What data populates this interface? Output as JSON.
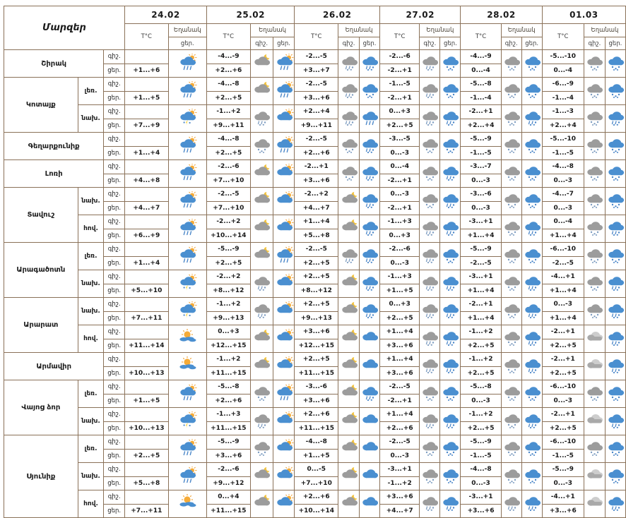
{
  "table": {
    "region_header": "Մարզեր",
    "temp_header": "T°C",
    "weather_header": "Եղանակ",
    "night_label": "գիշ.",
    "day_label": "ցեր.",
    "dates": [
      "24.02",
      "25.02",
      "26.02",
      "27.02",
      "28.02",
      "01.03"
    ],
    "colors": {
      "border": "#8a7158",
      "day_cloud": "#4a8fd0",
      "night_cloud": "#9c9c9c",
      "light_cloud": "#c6c6c6",
      "sun": "#f6ab37",
      "moon": "#f1c23f",
      "day_precip": "#4a86c8",
      "night_precip": "#7d9cc0",
      "bolt": "#f6cf2f"
    },
    "icon_legend": {
      "scr": "sun-cloud-rain",
      "scb": "sun-cloud-thunder",
      "sc": "sun-cloud",
      "ms": "mostly-sunny",
      "mc": "moon-cloud",
      "gs": "night-cloud-snow",
      "grs": "night-cloud-rain-snow",
      "gc": "cloudy",
      "bc": "day-cloud",
      "bs": "day-cloud-snow",
      "brs": "day-cloud-rain-snow",
      "br": "day-cloud-rain"
    },
    "regions": [
      {
        "name": "Շիրակ",
        "zones": [
          {
            "label": "",
            "days": [
              [
                "",
                "+1...+6",
                "",
                "scr"
              ],
              [
                "-4...-9",
                "+2...+6",
                "mc",
                "scr"
              ],
              [
                "-2...-5",
                "+3...+7",
                "grs",
                "brs"
              ],
              [
                "-2...-6",
                "-2...+1",
                "grs",
                "bs"
              ],
              [
                "-4...-9",
                "0...-4",
                "gs",
                "bs"
              ],
              [
                "-5...-10",
                "0...-4",
                "gs",
                "bs"
              ]
            ]
          }
        ]
      },
      {
        "name": "Կոտայք",
        "zones": [
          {
            "label": "լեռ.",
            "days": [
              [
                "",
                "+1...+5",
                "",
                "scr"
              ],
              [
                "-4...-8",
                "+2...+5",
                "mc",
                "scr"
              ],
              [
                "-2...-5",
                "+3...+6",
                "grs",
                "bs"
              ],
              [
                "-1...-5",
                "-2...+1",
                "grs",
                "bs"
              ],
              [
                "-5...-8",
                "-1...-4",
                "gs",
                "bs"
              ],
              [
                "-6...-9",
                "-1...-4",
                "gs",
                "bs"
              ]
            ]
          },
          {
            "label": "նախ.",
            "days": [
              [
                "",
                "+7...+9",
                "",
                "scb"
              ],
              [
                "-1...+2",
                "+9...+11",
                "grs",
                "sc"
              ],
              [
                "+2...+4",
                "+9...+11",
                "grs",
                "br"
              ],
              [
                "0...+3",
                "+2...+5",
                "grs",
                "brs"
              ],
              [
                "-2...+1",
                "+2...+4",
                "gs",
                "brs"
              ],
              [
                "-1...-3",
                "+2...+4",
                "gs",
                "brs"
              ]
            ]
          }
        ]
      },
      {
        "name": "Գեղարքունիք",
        "zones": [
          {
            "label": "",
            "days": [
              [
                "",
                "+1...+4",
                "",
                "scr"
              ],
              [
                "-4...-8",
                "+2...+5",
                "gs",
                "scr"
              ],
              [
                "-2...-5",
                "+2...+6",
                "gs",
                "brs"
              ],
              [
                "-3...-5",
                "0...-3",
                "gs",
                "bs"
              ],
              [
                "-5...-9",
                "-1...-5",
                "gs",
                "bs"
              ],
              [
                "-5...-10",
                "-1...-5",
                "gs",
                "bs"
              ]
            ]
          }
        ]
      },
      {
        "name": "Լոռի",
        "zones": [
          {
            "label": "",
            "days": [
              [
                "",
                "+4...+8",
                "",
                "scr"
              ],
              [
                "-2...-6",
                "+7...+10",
                "mc",
                "sc"
              ],
              [
                "-2...+1",
                "+3...+6",
                "gs",
                "brs"
              ],
              [
                "0...-4",
                "-2...+1",
                "gs",
                "brs"
              ],
              [
                "-3...-7",
                "0...-3",
                "gs",
                "bs"
              ],
              [
                "-4...-8",
                "0...-3",
                "gs",
                "bs"
              ]
            ]
          }
        ]
      },
      {
        "name": "Տավուշ",
        "zones": [
          {
            "label": "նախ.",
            "days": [
              [
                "",
                "+4...+7",
                "",
                "scr"
              ],
              [
                "-2...-5",
                "+7...+10",
                "mc",
                "sc"
              ],
              [
                "-2...+2",
                "+4...+7",
                "mc",
                "brs"
              ],
              [
                "0...-3",
                "-2...+1",
                "gs",
                "brs"
              ],
              [
                "-3...-6",
                "0...-3",
                "gs",
                "bs"
              ],
              [
                "-4...-7",
                "0...-3",
                "gs",
                "bs"
              ]
            ]
          },
          {
            "label": "հով.",
            "days": [
              [
                "",
                "+6...+9",
                "",
                "scr"
              ],
              [
                "-2...+2",
                "+10...+14",
                "mc",
                "sc"
              ],
              [
                "+1...+4",
                "+5...+8",
                "mc",
                "brs"
              ],
              [
                "-1...+3",
                "0...+3",
                "grs",
                "brs"
              ],
              [
                "-3...+1",
                "+1...+4",
                "gs",
                "brs"
              ],
              [
                "0...-4",
                "+1...+4",
                "gs",
                "brs"
              ]
            ]
          }
        ]
      },
      {
        "name": "Արագածոտն",
        "zones": [
          {
            "label": "լեռ.",
            "days": [
              [
                "",
                "+1...+4",
                "",
                "scr"
              ],
              [
                "-5...-9",
                "+2...+5",
                "mc",
                "scr"
              ],
              [
                "-2...-5",
                "+2...+5",
                "grs",
                "brs"
              ],
              [
                "-2...-6",
                "0...-3",
                "grs",
                "bs"
              ],
              [
                "-5...-9",
                "-2...-5",
                "gs",
                "bs"
              ],
              [
                "-6...-10",
                "-2...-5",
                "gs",
                "bs"
              ]
            ]
          },
          {
            "label": "նախ.",
            "days": [
              [
                "",
                "+5...+10",
                "",
                "scb"
              ],
              [
                "-2...+2",
                "+8...+12",
                "grs",
                "sc"
              ],
              [
                "+2...+5",
                "+8...+12",
                "mc",
                "brs"
              ],
              [
                "-1...+3",
                "+1...+5",
                "grs",
                "brs"
              ],
              [
                "-3...+1",
                "+1...+4",
                "gs",
                "brs"
              ],
              [
                "-4...+1",
                "+1...+4",
                "gs",
                "brs"
              ]
            ]
          }
        ]
      },
      {
        "name": "Արարատ",
        "zones": [
          {
            "label": "նախ.",
            "days": [
              [
                "",
                "+7...+11",
                "",
                "scb"
              ],
              [
                "-1...+2",
                "+9...+13",
                "grs",
                "sc"
              ],
              [
                "+2...+5",
                "+9...+13",
                "mc",
                "brs"
              ],
              [
                "0...+3",
                "+2...+5",
                "grs",
                "brs"
              ],
              [
                "-2...+1",
                "+1...+4",
                "gs",
                "brs"
              ],
              [
                "0...-3",
                "+1...+4",
                "gs",
                "brs"
              ]
            ]
          },
          {
            "label": "հով.",
            "days": [
              [
                "",
                "+11...+14",
                "",
                "ms"
              ],
              [
                "0...+3",
                "+12...+15",
                "mc",
                "sc"
              ],
              [
                "+3...+6",
                "+12...+15",
                "mc",
                "bc"
              ],
              [
                "+1...+4",
                "+3...+6",
                "grs",
                "brs"
              ],
              [
                "-1...+2",
                "+2...+5",
                "gs",
                "brs"
              ],
              [
                "-2...+1",
                "+2...+5",
                "gc",
                "brs"
              ]
            ]
          }
        ]
      },
      {
        "name": "Արմավիր",
        "zones": [
          {
            "label": "",
            "days": [
              [
                "",
                "+10...+13",
                "",
                "ms"
              ],
              [
                "-1...+2",
                "+11...+15",
                "mc",
                "sc"
              ],
              [
                "+2...+5",
                "+11...+15",
                "mc",
                "bc"
              ],
              [
                "+1...+4",
                "+3...+6",
                "grs",
                "brs"
              ],
              [
                "-1...+2",
                "+2...+5",
                "gs",
                "brs"
              ],
              [
                "-2...+1",
                "+2...+5",
                "gc",
                "brs"
              ]
            ]
          }
        ]
      },
      {
        "name": "Վայոց ձոր",
        "zones": [
          {
            "label": "լեռ.",
            "days": [
              [
                "",
                "+1...+5",
                "",
                "scr"
              ],
              [
                "-5...-8",
                "+2...+6",
                "gs",
                "scr"
              ],
              [
                "-3...-6",
                "+3...+6",
                "mc",
                "brs"
              ],
              [
                "-2...-5",
                "-2...+1",
                "gs",
                "bs"
              ],
              [
                "-5...-8",
                "0...-3",
                "gs",
                "bs"
              ],
              [
                "-6...-10",
                "0...-3",
                "gs",
                "bs"
              ]
            ]
          },
          {
            "label": "նախ.",
            "days": [
              [
                "",
                "+10...+13",
                "",
                "scb"
              ],
              [
                "-1...+3",
                "+11...+15",
                "grs",
                "sc"
              ],
              [
                "+2...+6",
                "+11...+15",
                "mc",
                "bc"
              ],
              [
                "+1...+4",
                "+2...+6",
                "grs",
                "brs"
              ],
              [
                "-1...+2",
                "+2...+5",
                "gs",
                "brs"
              ],
              [
                "-2...+1",
                "+2...+5",
                "gc",
                "brs"
              ]
            ]
          }
        ]
      },
      {
        "name": "Սյունիք",
        "zones": [
          {
            "label": "լեռ.",
            "days": [
              [
                "",
                "+2...+5",
                "",
                "scr"
              ],
              [
                "-5...-9",
                "+3...+6",
                "gs",
                "sc"
              ],
              [
                "-4...-8",
                "+1...+5",
                "mc",
                "bc"
              ],
              [
                "-2...-5",
                "0...-3",
                "gs",
                "bs"
              ],
              [
                "-5...-9",
                "-1...-5",
                "gs",
                "bs"
              ],
              [
                "-6...-10",
                "-1...-5",
                "gs",
                "bs"
              ]
            ]
          },
          {
            "label": "նախ.",
            "days": [
              [
                "",
                "+5...+8",
                "",
                "scr"
              ],
              [
                "-2...-6",
                "+9...+12",
                "mc",
                "sc"
              ],
              [
                "0...-5",
                "+7...+10",
                "mc",
                "bc"
              ],
              [
                "-3...+1",
                "-1...+2",
                "gs",
                "bs"
              ],
              [
                "-4...-8",
                "0...-3",
                "gs",
                "bs"
              ],
              [
                "-5...-9",
                "0...-3",
                "gc",
                "bs"
              ]
            ]
          },
          {
            "label": "հով.",
            "days": [
              [
                "",
                "+7...+11",
                "",
                "ms"
              ],
              [
                "0...+4",
                "+11...+15",
                "mc",
                "sc"
              ],
              [
                "+2...+6",
                "+10...+14",
                "mc",
                "bc"
              ],
              [
                "+3...+6",
                "+4...+7",
                "grs",
                "brs"
              ],
              [
                "-3...+1",
                "+3...+6",
                "grs",
                "brs"
              ],
              [
                "-4...+1",
                "+3...+6",
                "gc",
                "brs"
              ]
            ]
          }
        ]
      }
    ]
  }
}
